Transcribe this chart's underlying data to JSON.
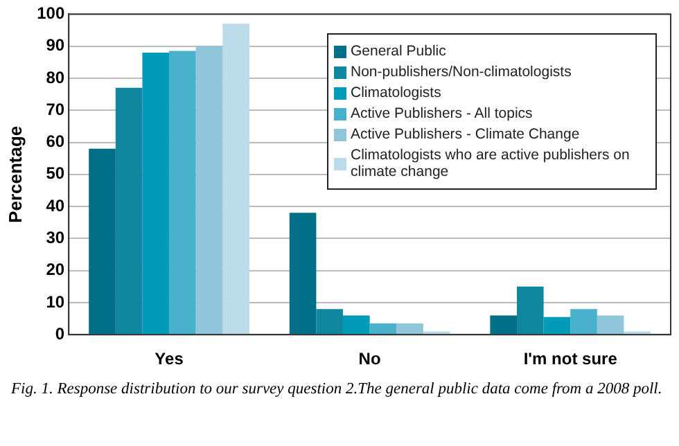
{
  "chart_data": {
    "type": "bar",
    "ylabel": "Percentage",
    "categories": [
      "Yes",
      "No",
      "I'm not sure"
    ],
    "series": [
      {
        "name": "General Public",
        "color": "#006f87",
        "values": [
          58,
          38,
          6
        ]
      },
      {
        "name": "Non-publishers/Non-climatologists",
        "color": "#11879f",
        "values": [
          77,
          8,
          15
        ]
      },
      {
        "name": "Climatologists",
        "color": "#009bb9",
        "values": [
          88,
          6,
          5.5
        ]
      },
      {
        "name": "Active Publishers - All topics",
        "color": "#4ab1cc",
        "values": [
          88.5,
          3.5,
          8
        ]
      },
      {
        "name": "Active Publishers - Climate Change",
        "color": "#90c5da",
        "values": [
          90,
          3.5,
          6
        ]
      },
      {
        "name": "Climatologists who are active publishers on climate change",
        "color": "#bcdcea",
        "values": [
          97,
          1,
          1
        ]
      }
    ],
    "ylim": [
      0,
      100
    ],
    "yticks": [
      0,
      10,
      20,
      30,
      40,
      50,
      60,
      70,
      80,
      90,
      100
    ],
    "grid": "y",
    "legend": "top right",
    "annotations": [
      "Fig. 1. Response distribution to our survey question 2.The general public data come from a 2008 poll."
    ]
  }
}
